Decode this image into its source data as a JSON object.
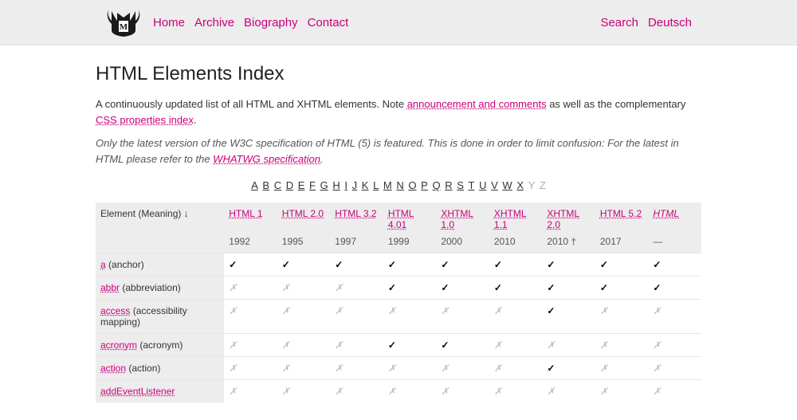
{
  "nav": {
    "links": [
      "Home",
      "Archive",
      "Biography",
      "Contact"
    ],
    "right": [
      "Search",
      "Deutsch"
    ]
  },
  "page": {
    "title": "HTML Elements Index",
    "intro_1": "A continuously updated list of all HTML and XHTML elements. Note ",
    "intro_link1": "announcement and comments",
    "intro_2": " as well as the complementary ",
    "intro_link2": "CSS properties index",
    "intro_3": ".",
    "note_1": "Only the latest version of the W3C specification of HTML (5) is featured. This is done in order to limit confusion: For the latest in HTML please refer to the ",
    "note_link": "WHATWG specification",
    "note_2": "."
  },
  "alpha": [
    "A",
    "B",
    "C",
    "D",
    "E",
    "F",
    "G",
    "H",
    "I",
    "J",
    "K",
    "L",
    "M",
    "N",
    "O",
    "P",
    "Q",
    "R",
    "S",
    "T",
    "U",
    "V",
    "W",
    "X",
    "Y",
    "Z"
  ],
  "alpha_disabled": [
    "Y",
    "Z"
  ],
  "table": {
    "head_label": "Element (Meaning) ↓",
    "specs": [
      "HTML 1",
      "HTML 2.0",
      "HTML 3.2",
      "HTML 4.01",
      "XHTML 1.0",
      "XHTML 1.1",
      "XHTML 2.0",
      "HTML 5.2",
      "HTML"
    ],
    "years": [
      "1992",
      "1995",
      "1997",
      "1999",
      "2000",
      "2010",
      "2010 †",
      "2017",
      "—"
    ],
    "rows": [
      {
        "el": "a",
        "meaning": "(anchor)",
        "cells": [
          1,
          1,
          1,
          1,
          1,
          1,
          1,
          1,
          1
        ]
      },
      {
        "el": "abbr",
        "meaning": "(abbreviation)",
        "cells": [
          0,
          0,
          0,
          1,
          1,
          1,
          1,
          1,
          1
        ]
      },
      {
        "el": "access",
        "meaning": "(accessibility mapping)",
        "cells": [
          0,
          0,
          0,
          0,
          0,
          0,
          1,
          0,
          0
        ]
      },
      {
        "el": "acronym",
        "meaning": "(acronym)",
        "cells": [
          0,
          0,
          0,
          1,
          1,
          0,
          0,
          0,
          0
        ]
      },
      {
        "el": "action",
        "meaning": "(action)",
        "cells": [
          0,
          0,
          0,
          0,
          0,
          0,
          1,
          0,
          0
        ]
      },
      {
        "el": "addEventListener",
        "meaning": "",
        "cells": [
          0,
          0,
          0,
          0,
          0,
          0,
          0,
          0,
          0
        ]
      }
    ]
  },
  "glyph": {
    "check": "✓",
    "cross": "✗"
  }
}
